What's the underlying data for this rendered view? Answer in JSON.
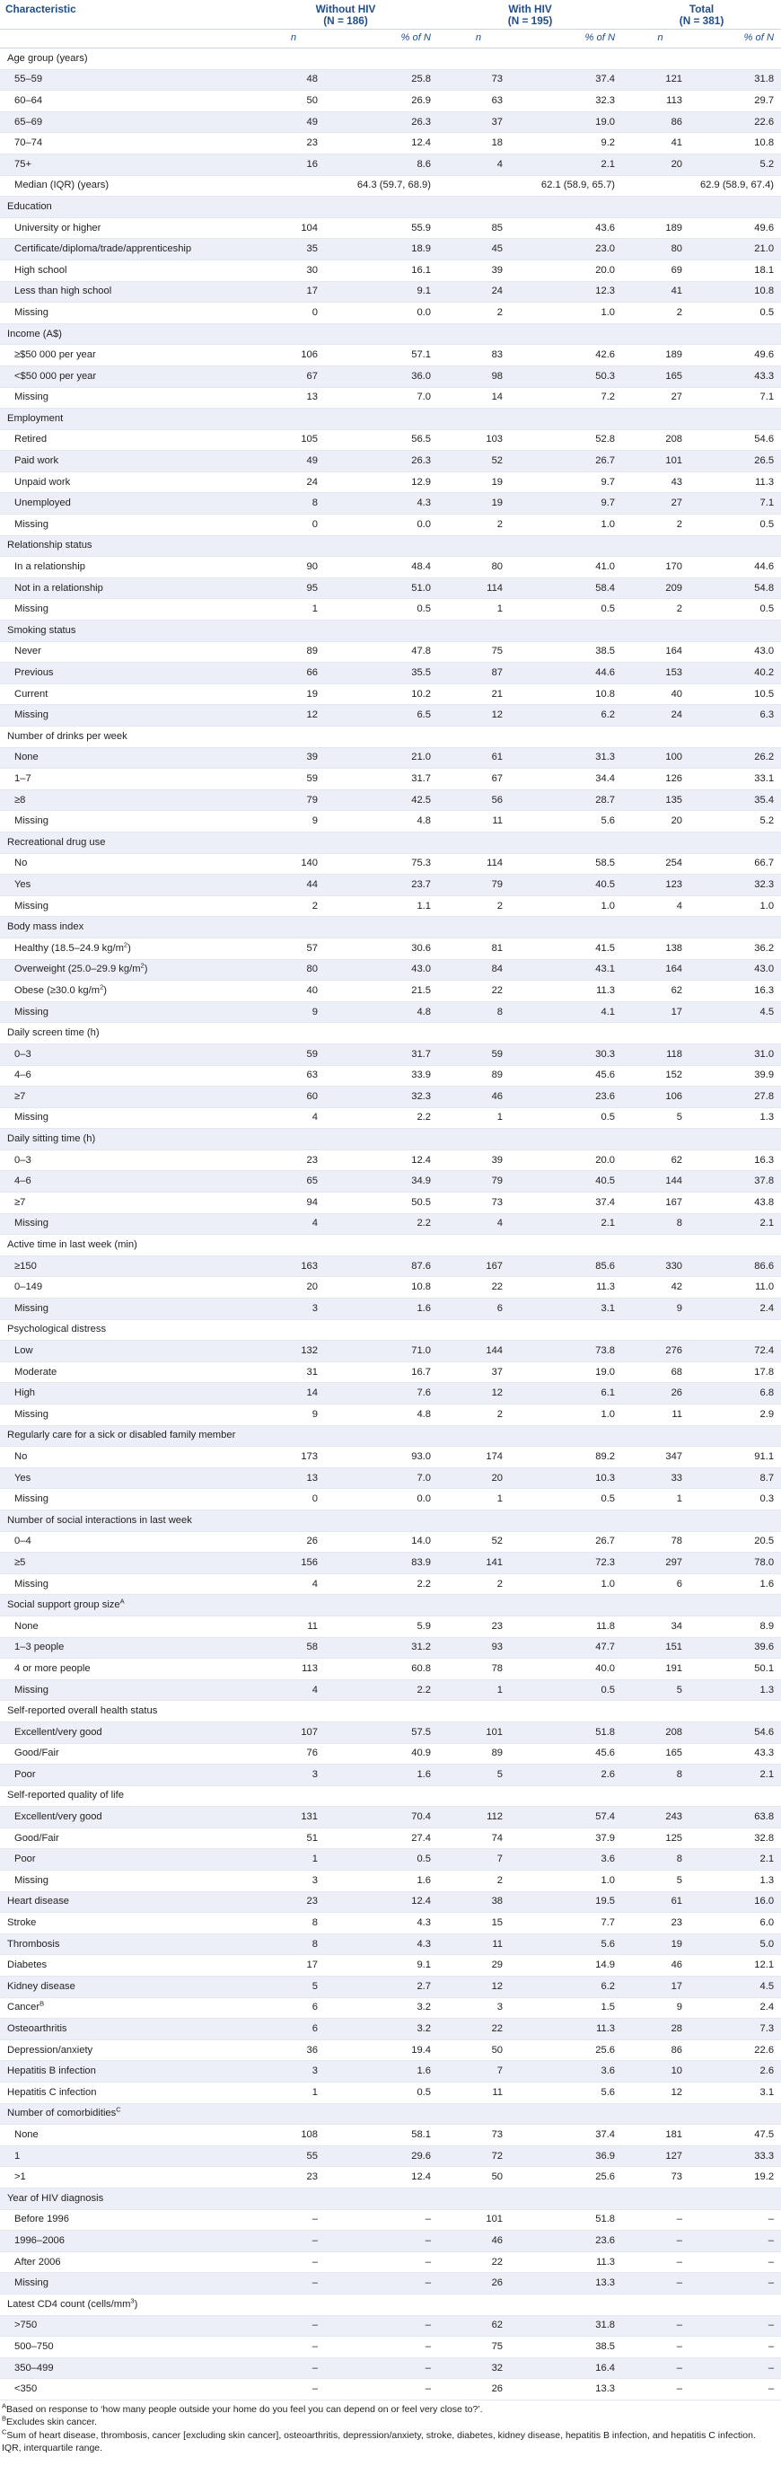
{
  "header": {
    "characteristic": "Characteristic",
    "groups": [
      {
        "title": "Without HIV",
        "n_label": "(N = 186)"
      },
      {
        "title": "With HIV",
        "n_label": "(N = 195)"
      },
      {
        "title": "Total",
        "n_label": "(N = 381)"
      }
    ],
    "subheaders": [
      "n",
      "% of N",
      "n",
      "% of N",
      "n",
      "% of N"
    ]
  },
  "rows": [
    {
      "label": "Age group (years)",
      "type": "section"
    },
    {
      "label": "55–59",
      "type": "row",
      "v": [
        "48",
        "25.8",
        "73",
        "37.4",
        "121",
        "31.8"
      ]
    },
    {
      "label": "60–64",
      "type": "row",
      "v": [
        "50",
        "26.9",
        "63",
        "32.3",
        "113",
        "29.7"
      ]
    },
    {
      "label": "65–69",
      "type": "row",
      "v": [
        "49",
        "26.3",
        "37",
        "19.0",
        "86",
        "22.6"
      ]
    },
    {
      "label": "70–74",
      "type": "row",
      "v": [
        "23",
        "12.4",
        "18",
        "9.2",
        "41",
        "10.8"
      ]
    },
    {
      "label": "75+",
      "type": "row",
      "v": [
        "16",
        "8.6",
        "4",
        "2.1",
        "20",
        "5.2"
      ]
    },
    {
      "label": "Median (IQR) (years)",
      "type": "median",
      "v": [
        "64.3 (59.7, 68.9)",
        "62.1 (58.9, 65.7)",
        "62.9 (58.9, 67.4)"
      ]
    },
    {
      "label": "Education",
      "type": "section"
    },
    {
      "label": "University or higher",
      "type": "row",
      "v": [
        "104",
        "55.9",
        "85",
        "43.6",
        "189",
        "49.6"
      ]
    },
    {
      "label": "Certificate/diploma/trade/apprenticeship",
      "type": "row",
      "v": [
        "35",
        "18.9",
        "45",
        "23.0",
        "80",
        "21.0"
      ]
    },
    {
      "label": "High school",
      "type": "row",
      "v": [
        "30",
        "16.1",
        "39",
        "20.0",
        "69",
        "18.1"
      ]
    },
    {
      "label": "Less than high school",
      "type": "row",
      "v": [
        "17",
        "9.1",
        "24",
        "12.3",
        "41",
        "10.8"
      ]
    },
    {
      "label": "Missing",
      "type": "row",
      "v": [
        "0",
        "0.0",
        "2",
        "1.0",
        "2",
        "0.5"
      ]
    },
    {
      "label": "Income (A$)",
      "type": "section"
    },
    {
      "label": "≥$50 000 per year",
      "type": "row",
      "v": [
        "106",
        "57.1",
        "83",
        "42.6",
        "189",
        "49.6"
      ]
    },
    {
      "label": "<$50 000 per year",
      "type": "row",
      "v": [
        "67",
        "36.0",
        "98",
        "50.3",
        "165",
        "43.3"
      ]
    },
    {
      "label": "Missing",
      "type": "row",
      "v": [
        "13",
        "7.0",
        "14",
        "7.2",
        "27",
        "7.1"
      ]
    },
    {
      "label": "Employment",
      "type": "section"
    },
    {
      "label": "Retired",
      "type": "row",
      "v": [
        "105",
        "56.5",
        "103",
        "52.8",
        "208",
        "54.6"
      ]
    },
    {
      "label": "Paid work",
      "type": "row",
      "v": [
        "49",
        "26.3",
        "52",
        "26.7",
        "101",
        "26.5"
      ]
    },
    {
      "label": "Unpaid work",
      "type": "row",
      "v": [
        "24",
        "12.9",
        "19",
        "9.7",
        "43",
        "11.3"
      ]
    },
    {
      "label": "Unemployed",
      "type": "row",
      "v": [
        "8",
        "4.3",
        "19",
        "9.7",
        "27",
        "7.1"
      ]
    },
    {
      "label": "Missing",
      "type": "row",
      "v": [
        "0",
        "0.0",
        "2",
        "1.0",
        "2",
        "0.5"
      ]
    },
    {
      "label": "Relationship status",
      "type": "section"
    },
    {
      "label": "In a relationship",
      "type": "row",
      "v": [
        "90",
        "48.4",
        "80",
        "41.0",
        "170",
        "44.6"
      ]
    },
    {
      "label": "Not in a relationship",
      "type": "row",
      "v": [
        "95",
        "51.0",
        "114",
        "58.4",
        "209",
        "54.8"
      ]
    },
    {
      "label": "Missing",
      "type": "row",
      "v": [
        "1",
        "0.5",
        "1",
        "0.5",
        "2",
        "0.5"
      ]
    },
    {
      "label": "Smoking status",
      "type": "section"
    },
    {
      "label": "Never",
      "type": "row",
      "v": [
        "89",
        "47.8",
        "75",
        "38.5",
        "164",
        "43.0"
      ]
    },
    {
      "label": "Previous",
      "type": "row",
      "v": [
        "66",
        "35.5",
        "87",
        "44.6",
        "153",
        "40.2"
      ]
    },
    {
      "label": "Current",
      "type": "row",
      "v": [
        "19",
        "10.2",
        "21",
        "10.8",
        "40",
        "10.5"
      ]
    },
    {
      "label": "Missing",
      "type": "row",
      "v": [
        "12",
        "6.5",
        "12",
        "6.2",
        "24",
        "6.3"
      ]
    },
    {
      "label": "Number of drinks per week",
      "type": "section"
    },
    {
      "label": "None",
      "type": "row",
      "v": [
        "39",
        "21.0",
        "61",
        "31.3",
        "100",
        "26.2"
      ]
    },
    {
      "label": "1–7",
      "type": "row",
      "v": [
        "59",
        "31.7",
        "67",
        "34.4",
        "126",
        "33.1"
      ]
    },
    {
      "label": "≥8",
      "type": "row",
      "v": [
        "79",
        "42.5",
        "56",
        "28.7",
        "135",
        "35.4"
      ]
    },
    {
      "label": "Missing",
      "type": "row",
      "v": [
        "9",
        "4.8",
        "11",
        "5.6",
        "20",
        "5.2"
      ]
    },
    {
      "label": "Recreational drug use",
      "type": "section"
    },
    {
      "label": "No",
      "type": "row",
      "v": [
        "140",
        "75.3",
        "114",
        "58.5",
        "254",
        "66.7"
      ]
    },
    {
      "label": "Yes",
      "type": "row",
      "v": [
        "44",
        "23.7",
        "79",
        "40.5",
        "123",
        "32.3"
      ]
    },
    {
      "label": "Missing",
      "type": "row",
      "v": [
        "2",
        "1.1",
        "2",
        "1.0",
        "4",
        "1.0"
      ]
    },
    {
      "label": "Body mass index",
      "type": "section"
    },
    {
      "label": "Healthy (18.5–24.9 kg/m",
      "sup": "2",
      "tail": ")",
      "type": "row",
      "v": [
        "57",
        "30.6",
        "81",
        "41.5",
        "138",
        "36.2"
      ]
    },
    {
      "label": "Overweight (25.0–29.9 kg/m",
      "sup": "2",
      "tail": ")",
      "type": "row",
      "v": [
        "80",
        "43.0",
        "84",
        "43.1",
        "164",
        "43.0"
      ]
    },
    {
      "label": "Obese (≥30.0 kg/m",
      "sup": "2",
      "tail": ")",
      "type": "row",
      "v": [
        "40",
        "21.5",
        "22",
        "11.3",
        "62",
        "16.3"
      ]
    },
    {
      "label": "Missing",
      "type": "row",
      "v": [
        "9",
        "4.8",
        "8",
        "4.1",
        "17",
        "4.5"
      ]
    },
    {
      "label": "Daily screen time (h)",
      "type": "section"
    },
    {
      "label": "0–3",
      "type": "row",
      "v": [
        "59",
        "31.7",
        "59",
        "30.3",
        "118",
        "31.0"
      ]
    },
    {
      "label": "4–6",
      "type": "row",
      "v": [
        "63",
        "33.9",
        "89",
        "45.6",
        "152",
        "39.9"
      ]
    },
    {
      "label": "≥7",
      "type": "row",
      "v": [
        "60",
        "32.3",
        "46",
        "23.6",
        "106",
        "27.8"
      ]
    },
    {
      "label": "Missing",
      "type": "row",
      "v": [
        "4",
        "2.2",
        "1",
        "0.5",
        "5",
        "1.3"
      ]
    },
    {
      "label": "Daily sitting time (h)",
      "type": "section"
    },
    {
      "label": "0–3",
      "type": "row",
      "v": [
        "23",
        "12.4",
        "39",
        "20.0",
        "62",
        "16.3"
      ]
    },
    {
      "label": "4–6",
      "type": "row",
      "v": [
        "65",
        "34.9",
        "79",
        "40.5",
        "144",
        "37.8"
      ]
    },
    {
      "label": "≥7",
      "type": "row",
      "v": [
        "94",
        "50.5",
        "73",
        "37.4",
        "167",
        "43.8"
      ]
    },
    {
      "label": "Missing",
      "type": "row",
      "v": [
        "4",
        "2.2",
        "4",
        "2.1",
        "8",
        "2.1"
      ]
    },
    {
      "label": "Active time in last week (min)",
      "type": "section"
    },
    {
      "label": "≥150",
      "type": "row",
      "v": [
        "163",
        "87.6",
        "167",
        "85.6",
        "330",
        "86.6"
      ]
    },
    {
      "label": "0–149",
      "type": "row",
      "v": [
        "20",
        "10.8",
        "22",
        "11.3",
        "42",
        "11.0"
      ]
    },
    {
      "label": "Missing",
      "type": "row",
      "v": [
        "3",
        "1.6",
        "6",
        "3.1",
        "9",
        "2.4"
      ]
    },
    {
      "label": "Psychological distress",
      "type": "section"
    },
    {
      "label": "Low",
      "type": "row",
      "v": [
        "132",
        "71.0",
        "144",
        "73.8",
        "276",
        "72.4"
      ]
    },
    {
      "label": "Moderate",
      "type": "row",
      "v": [
        "31",
        "16.7",
        "37",
        "19.0",
        "68",
        "17.8"
      ]
    },
    {
      "label": "High",
      "type": "row",
      "v": [
        "14",
        "7.6",
        "12",
        "6.1",
        "26",
        "6.8"
      ]
    },
    {
      "label": "Missing",
      "type": "row",
      "v": [
        "9",
        "4.8",
        "2",
        "1.0",
        "11",
        "2.9"
      ]
    },
    {
      "label": "Regularly care for a sick or disabled family member",
      "type": "section"
    },
    {
      "label": "No",
      "type": "row",
      "v": [
        "173",
        "93.0",
        "174",
        "89.2",
        "347",
        "91.1"
      ]
    },
    {
      "label": "Yes",
      "type": "row",
      "v": [
        "13",
        "7.0",
        "20",
        "10.3",
        "33",
        "8.7"
      ]
    },
    {
      "label": "Missing",
      "type": "row",
      "v": [
        "0",
        "0.0",
        "1",
        "0.5",
        "1",
        "0.3"
      ]
    },
    {
      "label": "Number of social interactions in last week",
      "type": "section"
    },
    {
      "label": "0–4",
      "type": "row",
      "v": [
        "26",
        "14.0",
        "52",
        "26.7",
        "78",
        "20.5"
      ]
    },
    {
      "label": "≥5",
      "type": "row",
      "v": [
        "156",
        "83.9",
        "141",
        "72.3",
        "297",
        "78.0"
      ]
    },
    {
      "label": "Missing",
      "type": "row",
      "v": [
        "4",
        "2.2",
        "2",
        "1.0",
        "6",
        "1.6"
      ]
    },
    {
      "label": "Social support group size",
      "sup": "A",
      "type": "section"
    },
    {
      "label": "None",
      "type": "row",
      "v": [
        "11",
        "5.9",
        "23",
        "11.8",
        "34",
        "8.9"
      ]
    },
    {
      "label": "1–3 people",
      "type": "row",
      "v": [
        "58",
        "31.2",
        "93",
        "47.7",
        "151",
        "39.6"
      ]
    },
    {
      "label": "4 or more people",
      "type": "row",
      "v": [
        "113",
        "60.8",
        "78",
        "40.0",
        "191",
        "50.1"
      ]
    },
    {
      "label": "Missing",
      "type": "row",
      "v": [
        "4",
        "2.2",
        "1",
        "0.5",
        "5",
        "1.3"
      ]
    },
    {
      "label": "Self-reported overall health status",
      "type": "section"
    },
    {
      "label": "Excellent/very good",
      "type": "row",
      "v": [
        "107",
        "57.5",
        "101",
        "51.8",
        "208",
        "54.6"
      ]
    },
    {
      "label": "Good/Fair",
      "type": "row",
      "v": [
        "76",
        "40.9",
        "89",
        "45.6",
        "165",
        "43.3"
      ]
    },
    {
      "label": "Poor",
      "type": "row",
      "v": [
        "3",
        "1.6",
        "5",
        "2.6",
        "8",
        "2.1"
      ]
    },
    {
      "label": "Self-reported quality of life",
      "type": "section"
    },
    {
      "label": "Excellent/very good",
      "type": "row",
      "v": [
        "131",
        "70.4",
        "112",
        "57.4",
        "243",
        "63.8"
      ]
    },
    {
      "label": "Good/Fair",
      "type": "row",
      "v": [
        "51",
        "27.4",
        "74",
        "37.9",
        "125",
        "32.8"
      ]
    },
    {
      "label": "Poor",
      "type": "row",
      "v": [
        "1",
        "0.5",
        "7",
        "3.6",
        "8",
        "2.1"
      ]
    },
    {
      "label": "Missing",
      "type": "row",
      "v": [
        "3",
        "1.6",
        "2",
        "1.0",
        "5",
        "1.3"
      ]
    },
    {
      "label": "Heart disease",
      "type": "top",
      "v": [
        "23",
        "12.4",
        "38",
        "19.5",
        "61",
        "16.0"
      ]
    },
    {
      "label": "Stroke",
      "type": "top",
      "v": [
        "8",
        "4.3",
        "15",
        "7.7",
        "23",
        "6.0"
      ]
    },
    {
      "label": "Thrombosis",
      "type": "top",
      "v": [
        "8",
        "4.3",
        "11",
        "5.6",
        "19",
        "5.0"
      ]
    },
    {
      "label": "Diabetes",
      "type": "top",
      "v": [
        "17",
        "9.1",
        "29",
        "14.9",
        "46",
        "12.1"
      ]
    },
    {
      "label": "Kidney disease",
      "type": "top",
      "v": [
        "5",
        "2.7",
        "12",
        "6.2",
        "17",
        "4.5"
      ]
    },
    {
      "label": "Cancer",
      "sup": "B",
      "type": "top",
      "v": [
        "6",
        "3.2",
        "3",
        "1.5",
        "9",
        "2.4"
      ]
    },
    {
      "label": "Osteoarthritis",
      "type": "top",
      "v": [
        "6",
        "3.2",
        "22",
        "11.3",
        "28",
        "7.3"
      ]
    },
    {
      "label": "Depression/anxiety",
      "type": "top",
      "v": [
        "36",
        "19.4",
        "50",
        "25.6",
        "86",
        "22.6"
      ]
    },
    {
      "label": "Hepatitis B infection",
      "type": "top",
      "v": [
        "3",
        "1.6",
        "7",
        "3.6",
        "10",
        "2.6"
      ]
    },
    {
      "label": "Hepatitis C infection",
      "type": "top",
      "v": [
        "1",
        "0.5",
        "11",
        "5.6",
        "12",
        "3.1"
      ]
    },
    {
      "label": "Number of comorbidities",
      "sup": "C",
      "type": "section"
    },
    {
      "label": "None",
      "type": "row",
      "v": [
        "108",
        "58.1",
        "73",
        "37.4",
        "181",
        "47.5"
      ]
    },
    {
      "label": "1",
      "type": "row",
      "v": [
        "55",
        "29.6",
        "72",
        "36.9",
        "127",
        "33.3"
      ]
    },
    {
      "label": ">1",
      "type": "row",
      "v": [
        "23",
        "12.4",
        "50",
        "25.6",
        "73",
        "19.2"
      ]
    },
    {
      "label": "Year of HIV diagnosis",
      "type": "section"
    },
    {
      "label": "Before 1996",
      "type": "row",
      "v": [
        "–",
        "–",
        "101",
        "51.8",
        "–",
        "–"
      ]
    },
    {
      "label": "1996–2006",
      "type": "row",
      "v": [
        "–",
        "–",
        "46",
        "23.6",
        "–",
        "–"
      ]
    },
    {
      "label": "After 2006",
      "type": "row",
      "v": [
        "–",
        "–",
        "22",
        "11.3",
        "–",
        "–"
      ]
    },
    {
      "label": "Missing",
      "type": "row",
      "v": [
        "–",
        "–",
        "26",
        "13.3",
        "–",
        "–"
      ]
    },
    {
      "label": "Latest CD4 count (cells/mm",
      "sup": "3",
      "tail": ")",
      "type": "section"
    },
    {
      "label": ">750",
      "type": "row",
      "v": [
        "–",
        "–",
        "62",
        "31.8",
        "–",
        "–"
      ]
    },
    {
      "label": "500–750",
      "type": "row",
      "v": [
        "–",
        "–",
        "75",
        "38.5",
        "–",
        "–"
      ]
    },
    {
      "label": "350–499",
      "type": "row",
      "v": [
        "–",
        "–",
        "32",
        "16.4",
        "–",
        "–"
      ]
    },
    {
      "label": "<350",
      "type": "row",
      "v": [
        "–",
        "–",
        "26",
        "13.3",
        "–",
        "–"
      ]
    }
  ],
  "footnotes": [
    {
      "mark": "A",
      "text": "Based on response to ‘how many people outside your home do you feel you can depend on or feel very close to?’."
    },
    {
      "mark": "B",
      "text": "Excludes skin cancer."
    },
    {
      "mark": "C",
      "text": "Sum of heart disease, thrombosis, cancer [excluding skin cancer], osteoarthritis, depression/anxiety, stroke, diabetes, kidney disease, hepatitis B infection, and hepatitis C infection."
    },
    {
      "mark": "",
      "text": "IQR, interquartile range."
    }
  ]
}
